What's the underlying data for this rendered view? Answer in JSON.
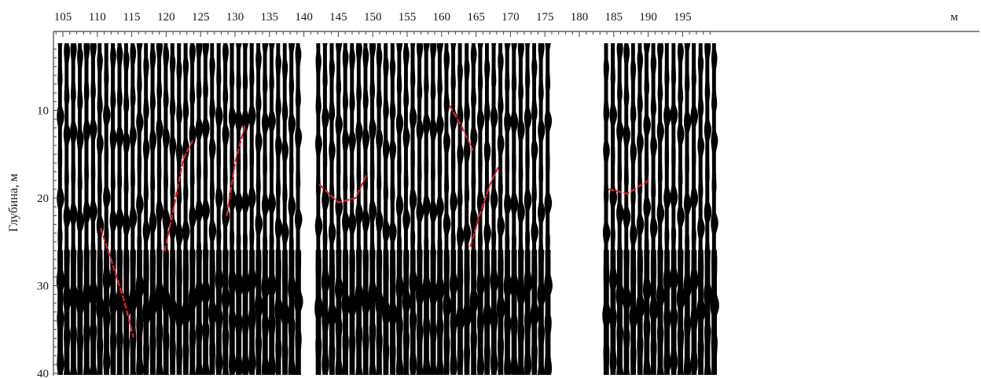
{
  "chart_data": {
    "type": "seismic-section",
    "title": "",
    "xlabel": "",
    "x_unit": "м",
    "ylabel": "Глубина, м",
    "xlim": [
      103.5,
      199.8
    ],
    "ylim": [
      0,
      40
    ],
    "y_inverted": true,
    "x_ticks": [
      105,
      110,
      115,
      120,
      125,
      130,
      135,
      140,
      145,
      150,
      155,
      160,
      165,
      170,
      175,
      180,
      185,
      190,
      195
    ],
    "y_ticks": [
      10,
      20,
      30,
      40
    ],
    "trace_segments": [
      {
        "x_start": 104.5,
        "x_end": 139.5,
        "step": 0.96
      },
      {
        "x_start": 142.0,
        "x_end": 176.2,
        "step": 0.98
      },
      {
        "x_start": 183.8,
        "x_end": 199.8,
        "step": 0.98
      }
    ],
    "gaps": [
      [
        140.0,
        141.8
      ],
      [
        176.6,
        183.3
      ]
    ],
    "trace_color": "#000000",
    "horizon_color": "#e8202a",
    "horizons": [
      {
        "points": [
          [
            110.5,
            23.5
          ],
          [
            112,
            27
          ],
          [
            114,
            32
          ],
          [
            115.2,
            35.8
          ]
        ]
      },
      {
        "points": [
          [
            119.8,
            26
          ],
          [
            121,
            21.5
          ],
          [
            122.5,
            15.5
          ],
          [
            123.8,
            13.5
          ]
        ]
      },
      {
        "points": [
          [
            128.8,
            22
          ],
          [
            130,
            16
          ],
          [
            131.5,
            11.5
          ]
        ]
      },
      {
        "points": [
          [
            142.3,
            18.5
          ],
          [
            145,
            20.5
          ],
          [
            147.5,
            20
          ],
          [
            149,
            17.5
          ]
        ]
      },
      {
        "points": [
          [
            161.2,
            9.5
          ],
          [
            163,
            12
          ],
          [
            164.5,
            14.5
          ]
        ]
      },
      {
        "points": [
          [
            164.2,
            25.5
          ],
          [
            165.5,
            22
          ],
          [
            167,
            18.5
          ],
          [
            168.2,
            16.5
          ]
        ]
      },
      {
        "points": [
          [
            184.3,
            19
          ],
          [
            187,
            19.5
          ],
          [
            190,
            18
          ]
        ]
      }
    ],
    "grid": false,
    "legend": "none"
  }
}
